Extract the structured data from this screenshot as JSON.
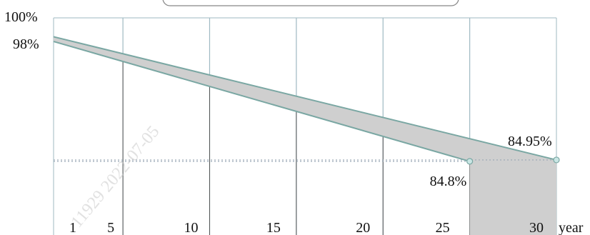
{
  "chart_data": {
    "type": "area",
    "title": "",
    "xlabel": "year",
    "ylabel": "",
    "xlim": [
      1,
      30
    ],
    "ylim": [
      77,
      100
    ],
    "grid": true,
    "x_ticks": [
      "1",
      "5",
      "10",
      "15",
      "20",
      "25",
      "30"
    ],
    "y_ticks": [
      "100%",
      "98%"
    ],
    "series": [
      {
        "x": [
          1,
          30
        ],
        "values": [
          98.0,
          84.95
        ]
      },
      {
        "x": [
          1,
          25
        ],
        "values": [
          97.5,
          84.8
        ]
      }
    ],
    "annotations": [
      {
        "text": "84.95%",
        "x": 30,
        "y": 84.95
      },
      {
        "text": "84.8%",
        "x": 25,
        "y": 84.8
      }
    ],
    "watermark": "11929 2022-07-05"
  },
  "colors": {
    "fill": "#cfcfcf",
    "line": "#7aa7a3",
    "grid": "#9fb9c2",
    "marker_fill": "#c9e6e4",
    "dotted": "#9aa7b5"
  },
  "text": {
    "y_top": "100%",
    "y_98": "98%",
    "x_unit": "year"
  }
}
